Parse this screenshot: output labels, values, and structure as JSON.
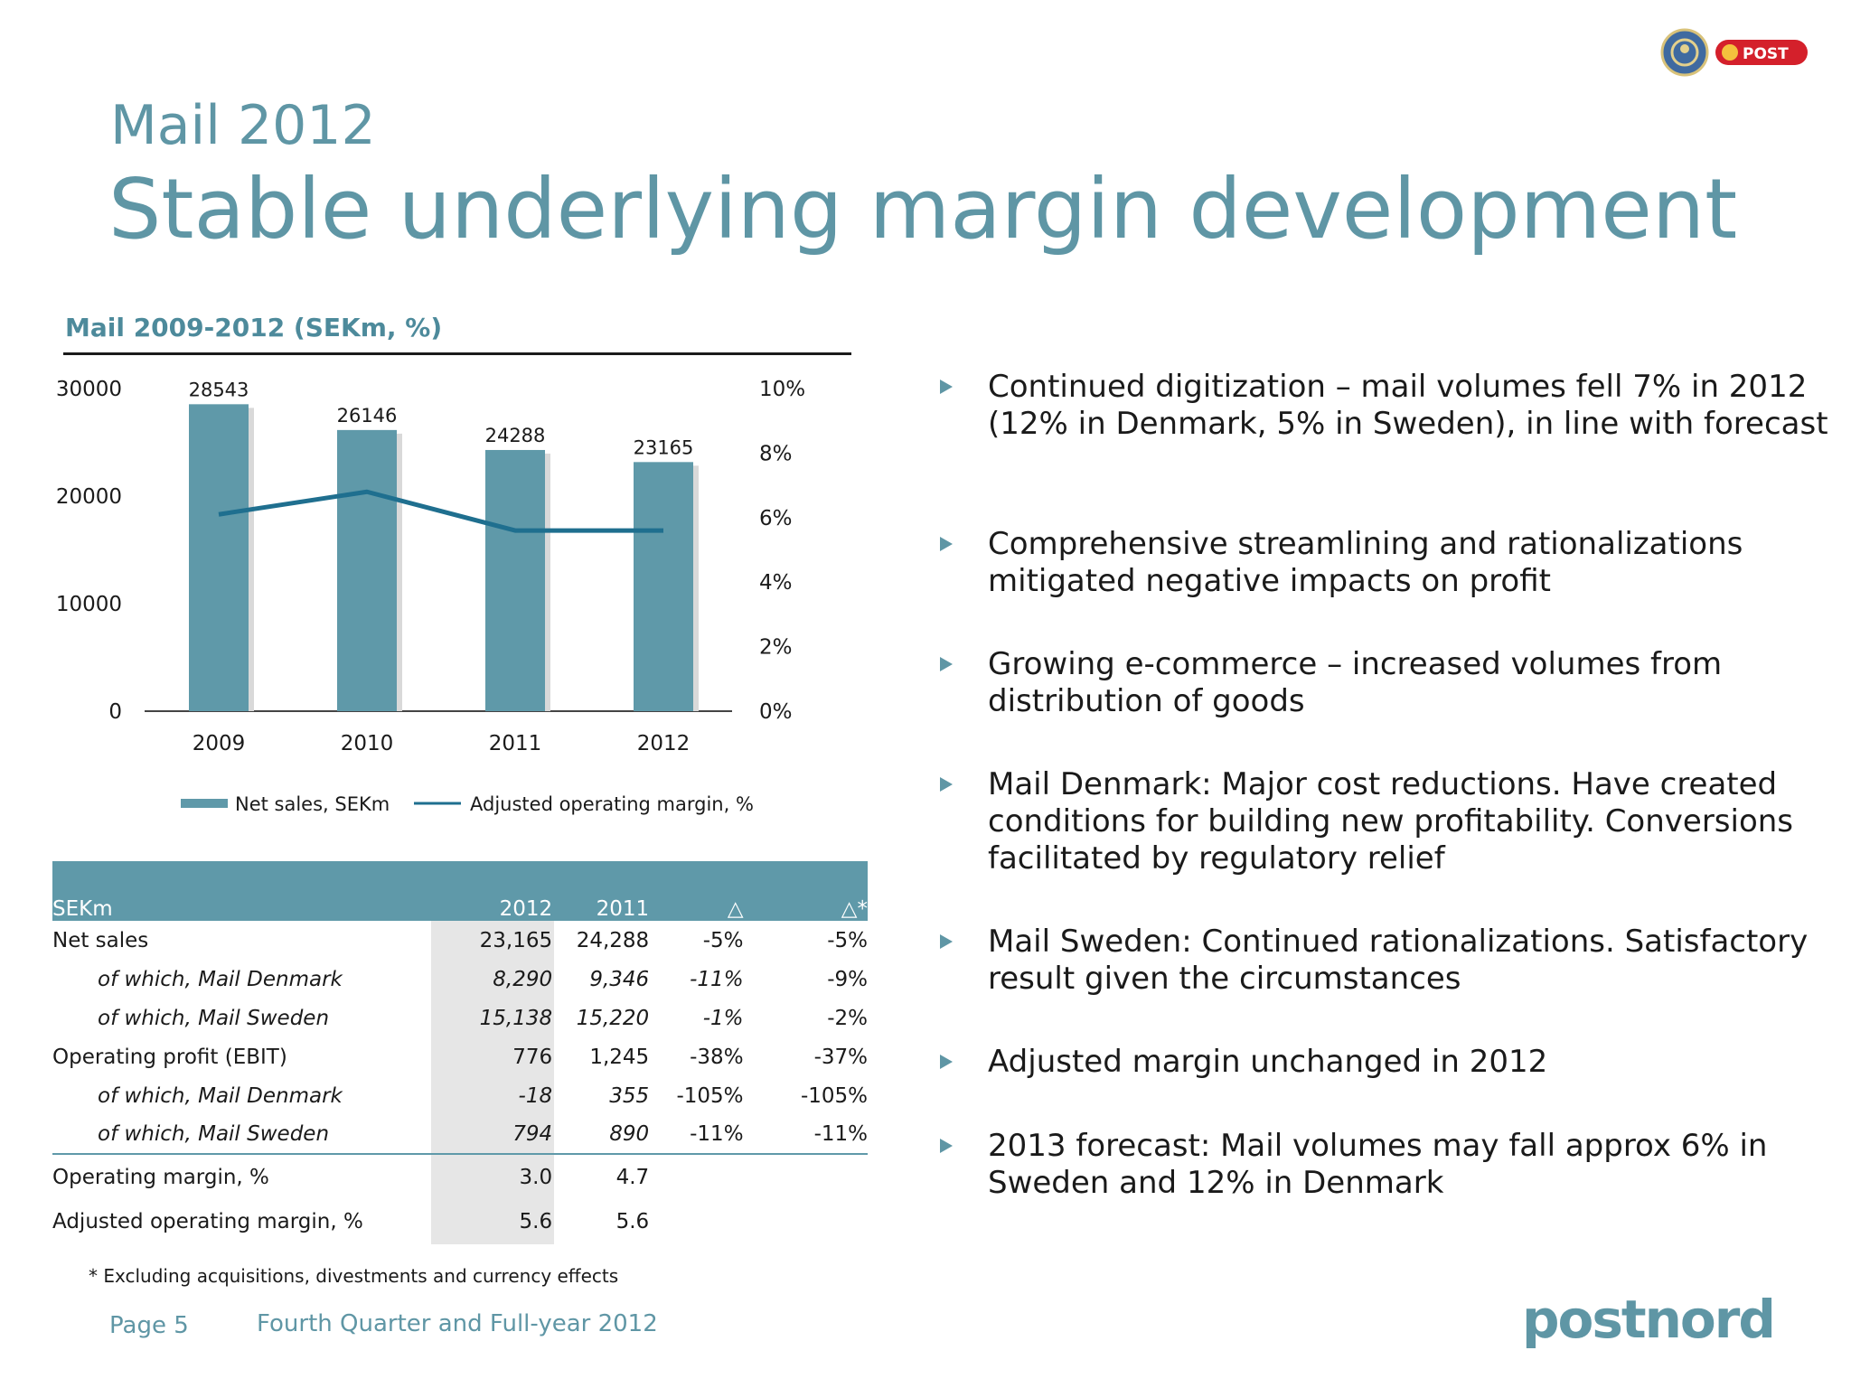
{
  "header": {
    "supertitle": "Mail 2012",
    "title": "Stable underlying margin development"
  },
  "logos": {
    "post_logo_text": "POST"
  },
  "chart_heading": "Mail 2009-2012 (SEKm, %)",
  "chart_data": {
    "type": "bar",
    "categories": [
      "2009",
      "2010",
      "2011",
      "2012"
    ],
    "series": [
      {
        "name": "Net sales, SEKm",
        "type": "bar",
        "axis": "left",
        "values": [
          28543,
          26146,
          24288,
          23165
        ],
        "labels": [
          "28543",
          "26146",
          "24288",
          "23165"
        ],
        "color": "#5f99a9"
      },
      {
        "name": "Adjusted operating margin, %",
        "type": "line",
        "axis": "right",
        "values": [
          6.1,
          6.8,
          5.6,
          5.6
        ],
        "color": "#1f6f8f"
      }
    ],
    "y_left": {
      "range": [
        0,
        30000
      ],
      "ticks": [
        "0",
        "10000",
        "20000",
        "30000"
      ]
    },
    "y_right": {
      "range": [
        0,
        10
      ],
      "ticks": [
        "0%",
        "2%",
        "4%",
        "6%",
        "8%",
        "10%"
      ]
    },
    "legend": "bottom"
  },
  "table": {
    "headers": [
      "SEKm",
      "2012",
      "2011",
      "△",
      "△*"
    ],
    "rows": [
      {
        "label": "Net sales",
        "cells": [
          "23,165",
          "24,288",
          "-5%",
          "-5%"
        ]
      },
      {
        "label": "of which, Mail Denmark",
        "cells": [
          "8,290",
          "9,346",
          "-11%",
          "-9%"
        ]
      },
      {
        "label": "of which, Mail Sweden",
        "cells": [
          "15,138",
          "15,220",
          "-1%",
          "-2%"
        ]
      },
      {
        "label": "Operating profit (EBIT)",
        "cells": [
          "776",
          "1,245",
          "-38%",
          "-37%"
        ]
      },
      {
        "label": "of which, Mail Denmark",
        "cells": [
          "-18",
          "355",
          "-105%",
          "-105%"
        ]
      },
      {
        "label": "of which, Mail Sweden",
        "cells": [
          "794",
          "890",
          "-11%",
          "-11%"
        ]
      },
      {
        "label": "Operating margin, %",
        "cells": [
          "3.0",
          "4.7",
          "",
          ""
        ]
      },
      {
        "label": "Adjusted operating margin, %",
        "cells": [
          "5.6",
          "5.6",
          "",
          ""
        ]
      }
    ]
  },
  "footnote": "* Excluding acquisitions, divestments and currency effects",
  "bullets": [
    "Continued digitization – mail volumes fell 7% in 2012 (12% in Denmark, 5% in Sweden), in line with forecast",
    "Comprehensive streamlining and rationalizations mitigated negative impacts on profit",
    "Growing e-commerce – increased volumes from distribution of goods",
    "Mail Denmark: Major cost reductions. Have created conditions for building new profitability. Conversions facilitated by regulatory relief",
    "Mail Sweden: Continued rationalizations. Satisfactory result given the circumstances",
    "Adjusted margin unchanged in 2012",
    "2013 forecast: Mail volumes may fall approx 6% in Sweden and 12% in Denmark"
  ],
  "footer": {
    "page": "Page 5",
    "report": "Fourth Quarter and Full-year 2012",
    "brand": "postnord"
  }
}
